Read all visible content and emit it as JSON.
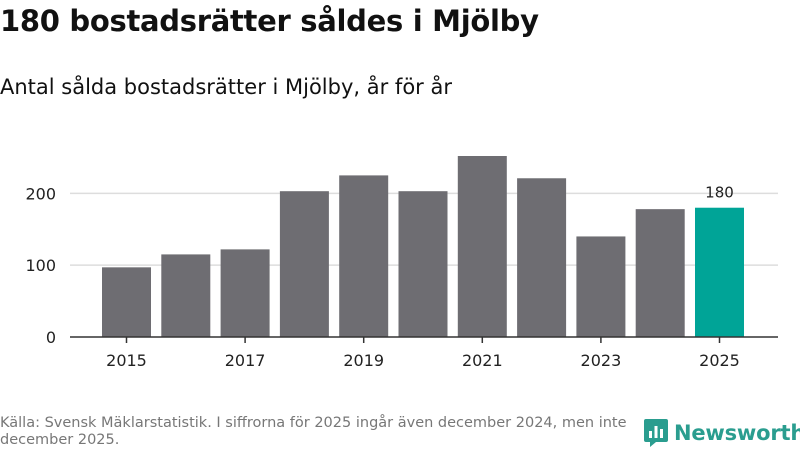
{
  "title": "180 bostadsrätter såldes i Mjölby",
  "subtitle": "Antal sålda bostadsrätter i Mjölby, år för år",
  "source": "Källa: Svensk Mäklarstatistik. I siffrorna för 2025 ingår även december 2024, men inte december 2025.",
  "brand": {
    "name": "Newsworthy",
    "icon": "newsworthy-logo-icon",
    "color": "#2a9d8f"
  },
  "colors": {
    "bar": "#6e6d72",
    "highlight": "#00a497",
    "grid": "#dddddd",
    "axis": "#333333"
  },
  "chart_data": {
    "type": "bar",
    "title": "Antal sålda bostadsrätter i Mjölby, år för år",
    "xlabel": "",
    "ylabel": "",
    "categories": [
      "2015",
      "2016",
      "2017",
      "2018",
      "2019",
      "2020",
      "2021",
      "2022",
      "2023",
      "2024",
      "2025"
    ],
    "values": [
      97,
      115,
      122,
      203,
      225,
      203,
      252,
      221,
      140,
      178,
      180
    ],
    "highlight_index": 10,
    "data_labels": [
      {
        "index": 10,
        "text": "180"
      }
    ],
    "x_tick_labels": [
      "2015",
      "2017",
      "2019",
      "2021",
      "2023",
      "2025"
    ],
    "y_ticks": [
      0,
      100,
      200
    ],
    "y_tick_labels": [
      "0",
      "100",
      "200"
    ],
    "ylim": [
      0,
      252
    ],
    "grid": true
  }
}
